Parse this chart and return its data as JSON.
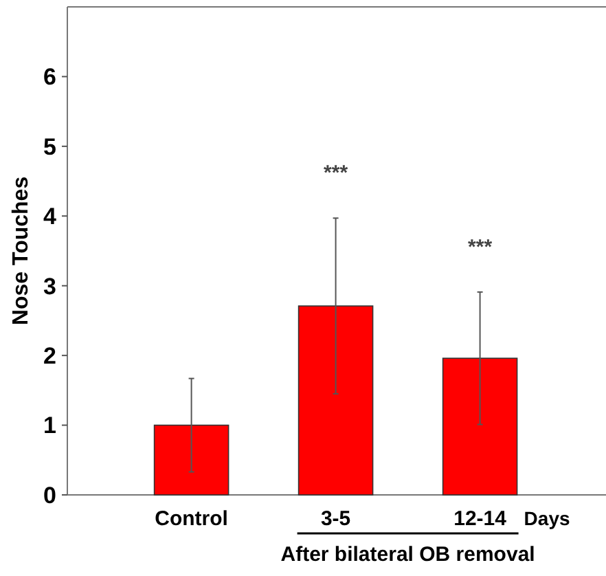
{
  "chart_data": {
    "type": "bar",
    "ylabel": "Nose Touches",
    "categories": [
      "Control",
      "3-5",
      "12-14"
    ],
    "values": [
      1.0,
      2.71,
      1.96
    ],
    "color": "#ff0000",
    "errors": [
      0.67,
      1.26,
      0.95
    ],
    "ylim": [
      0,
      7
    ],
    "yticks": [
      0,
      1,
      2,
      3,
      4,
      5,
      6
    ],
    "grid": false,
    "annotations": [
      "***",
      "***",
      "Days",
      "After bilateral OB removal"
    ]
  }
}
